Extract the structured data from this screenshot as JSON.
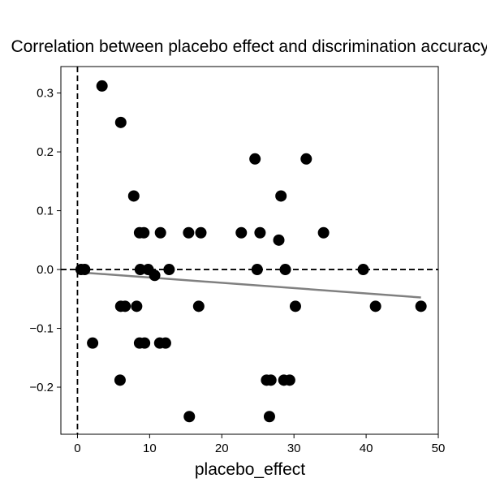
{
  "chart_data": {
    "type": "scatter",
    "title": "Correlation between placebo effect and discrimination accuracy",
    "xlabel": "placebo_effect",
    "ylabel": "",
    "xlim": [
      -2.3,
      50
    ],
    "ylim": [
      -0.28,
      0.345
    ],
    "xticks": [
      0,
      10,
      20,
      30,
      40,
      50
    ],
    "yticks": [
      -0.2,
      -0.1,
      0.0,
      0.1,
      0.2,
      0.3
    ],
    "xtick_labels": [
      "0",
      "10",
      "20",
      "30",
      "40",
      "50"
    ],
    "ytick_labels": [
      "−0.2",
      "−0.1",
      "0.0",
      "0.1",
      "0.2",
      "0.3"
    ],
    "grid": false,
    "points": [
      {
        "x": 3.4,
        "y": 0.312
      },
      {
        "x": 6.0,
        "y": 0.25
      },
      {
        "x": 24.6,
        "y": 0.188
      },
      {
        "x": 31.7,
        "y": 0.188
      },
      {
        "x": 7.8,
        "y": 0.125
      },
      {
        "x": 28.2,
        "y": 0.125
      },
      {
        "x": 8.6,
        "y": 0.0625
      },
      {
        "x": 9.2,
        "y": 0.0625
      },
      {
        "x": 11.5,
        "y": 0.0625
      },
      {
        "x": 15.4,
        "y": 0.0625
      },
      {
        "x": 17.1,
        "y": 0.0625
      },
      {
        "x": 22.7,
        "y": 0.0625
      },
      {
        "x": 25.3,
        "y": 0.0625
      },
      {
        "x": 34.1,
        "y": 0.0625
      },
      {
        "x": 27.9,
        "y": 0.05
      },
      {
        "x": 0.5,
        "y": 0.0
      },
      {
        "x": 1.0,
        "y": 0.0
      },
      {
        "x": 8.7,
        "y": 0.0
      },
      {
        "x": 9.8,
        "y": 0.0
      },
      {
        "x": 12.7,
        "y": 0.0
      },
      {
        "x": 24.9,
        "y": 0.0
      },
      {
        "x": 28.8,
        "y": 0.0
      },
      {
        "x": 39.6,
        "y": 0.0
      },
      {
        "x": 10.7,
        "y": -0.01
      },
      {
        "x": 6.0,
        "y": -0.0625
      },
      {
        "x": 6.6,
        "y": -0.0625
      },
      {
        "x": 8.2,
        "y": -0.0625
      },
      {
        "x": 16.8,
        "y": -0.0625
      },
      {
        "x": 30.2,
        "y": -0.0625
      },
      {
        "x": 41.3,
        "y": -0.0625
      },
      {
        "x": 47.6,
        "y": -0.0625
      },
      {
        "x": 2.1,
        "y": -0.125
      },
      {
        "x": 8.6,
        "y": -0.125
      },
      {
        "x": 9.3,
        "y": -0.125
      },
      {
        "x": 11.4,
        "y": -0.125
      },
      {
        "x": 12.2,
        "y": -0.125
      },
      {
        "x": 5.9,
        "y": -0.188
      },
      {
        "x": 26.2,
        "y": -0.188
      },
      {
        "x": 26.8,
        "y": -0.188
      },
      {
        "x": 28.6,
        "y": -0.188
      },
      {
        "x": 29.4,
        "y": -0.188
      },
      {
        "x": 15.5,
        "y": -0.25
      },
      {
        "x": 26.6,
        "y": -0.25
      }
    ],
    "regression_line": {
      "x": [
        0,
        47.6
      ],
      "y": [
        -0.0045,
        -0.0475
      ],
      "color": "#808080"
    },
    "reference_lines": [
      {
        "orientation": "vertical",
        "value": 0,
        "style": "dashed",
        "color": "#000000"
      },
      {
        "orientation": "horizontal",
        "value": 0,
        "style": "dashed",
        "color": "#000000"
      }
    ],
    "colors": {
      "points": "#000000",
      "regression": "#808080",
      "reference": "#000000"
    }
  }
}
